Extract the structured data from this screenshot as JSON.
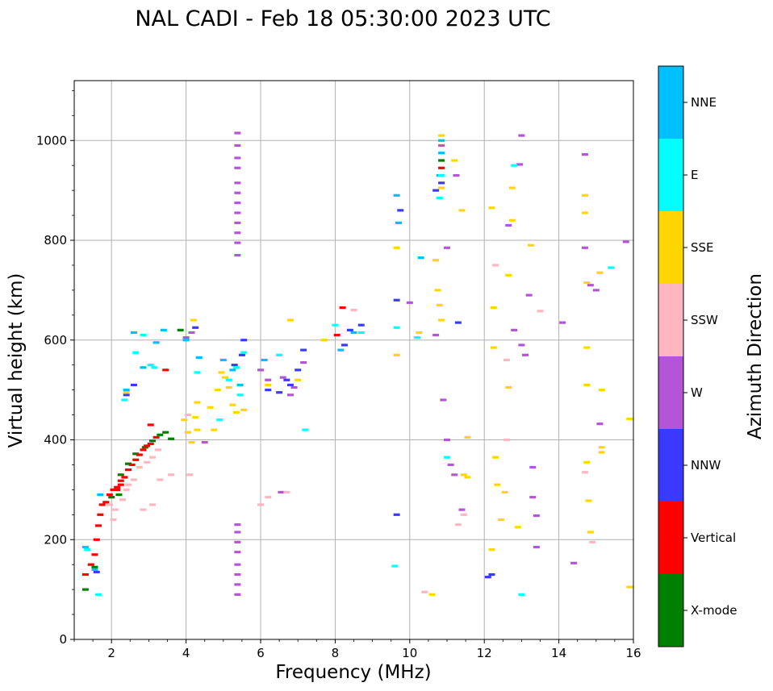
{
  "chart_data": {
    "type": "scatter",
    "title": "NAL CADI - Feb 18 05:30:00 2023 UTC",
    "xlabel": "Frequency (MHz)",
    "ylabel": "Virtual height (km)",
    "xlim": [
      1,
      16
    ],
    "ylim": [
      0,
      1120
    ],
    "xticks": [
      2,
      4,
      6,
      8,
      10,
      12,
      14,
      16
    ],
    "yticks": [
      0,
      200,
      400,
      600,
      800,
      1000
    ],
    "grid": true,
    "colorbar": {
      "label": "Azimuth Direction",
      "categories": [
        {
          "name": "X-mode",
          "color": "#008000"
        },
        {
          "name": "Vertical",
          "color": "#ff0000"
        },
        {
          "name": "NNW",
          "color": "#3a3aff"
        },
        {
          "name": "W",
          "color": "#b355d6"
        },
        {
          "name": "SSW",
          "color": "#ffb6c1"
        },
        {
          "name": "SSE",
          "color": "#ffd700"
        },
        {
          "name": "E",
          "color": "#00ffff"
        },
        {
          "name": "NNE",
          "color": "#00bfff"
        }
      ]
    },
    "series": [
      {
        "name": "X-mode",
        "points": [
          [
            1.3,
            100
          ],
          [
            1.55,
            145
          ],
          [
            2.0,
            285
          ],
          [
            2.25,
            330
          ],
          [
            2.45,
            352
          ],
          [
            2.65,
            372
          ],
          [
            2.9,
            385
          ],
          [
            3.1,
            398
          ],
          [
            3.3,
            410
          ],
          [
            3.45,
            415
          ],
          [
            3.6,
            402
          ],
          [
            3.85,
            620
          ],
          [
            2.2,
            290
          ]
        ]
      },
      {
        "name": "Vertical",
        "points": [
          [
            1.3,
            130
          ],
          [
            1.45,
            150
          ],
          [
            1.55,
            170
          ],
          [
            1.6,
            200
          ],
          [
            1.65,
            228
          ],
          [
            1.7,
            250
          ],
          [
            1.75,
            270
          ],
          [
            1.85,
            275
          ],
          [
            1.95,
            290
          ],
          [
            2.05,
            300
          ],
          [
            2.15,
            305
          ],
          [
            2.25,
            318
          ],
          [
            2.35,
            325
          ],
          [
            2.45,
            340
          ],
          [
            2.55,
            350
          ],
          [
            2.65,
            360
          ],
          [
            2.75,
            370
          ],
          [
            2.85,
            380
          ],
          [
            2.95,
            388
          ],
          [
            3.05,
            392
          ],
          [
            3.2,
            405
          ],
          [
            3.45,
            540
          ],
          [
            3.05,
            430
          ],
          [
            2.25,
            310
          ],
          [
            2.15,
            300
          ],
          [
            8.05,
            610
          ],
          [
            8.2,
            665
          ]
        ]
      },
      {
        "name": "NNW",
        "points": [
          [
            1.6,
            135
          ],
          [
            2.4,
            490
          ],
          [
            2.6,
            510
          ],
          [
            4.25,
            625
          ],
          [
            5.3,
            550
          ],
          [
            5.5,
            570
          ],
          [
            5.55,
            600
          ],
          [
            6.2,
            500
          ],
          [
            6.5,
            495
          ],
          [
            6.7,
            520
          ],
          [
            6.8,
            510
          ],
          [
            7.0,
            540
          ],
          [
            7.15,
            580
          ],
          [
            8.25,
            590
          ],
          [
            8.4,
            620
          ],
          [
            8.7,
            630
          ],
          [
            9.65,
            680
          ],
          [
            9.65,
            250
          ],
          [
            9.75,
            860
          ],
          [
            10.7,
            900
          ],
          [
            11.3,
            635
          ],
          [
            12.1,
            125
          ],
          [
            12.2,
            130
          ]
        ]
      },
      {
        "name": "W",
        "points": [
          [
            5.38,
            1015
          ],
          [
            5.38,
            990
          ],
          [
            5.38,
            965
          ],
          [
            5.38,
            945
          ],
          [
            5.38,
            915
          ],
          [
            5.38,
            895
          ],
          [
            5.38,
            875
          ],
          [
            5.38,
            855
          ],
          [
            5.38,
            835
          ],
          [
            5.38,
            815
          ],
          [
            5.38,
            795
          ],
          [
            5.38,
            770
          ],
          [
            5.38,
            230
          ],
          [
            5.38,
            215
          ],
          [
            5.38,
            195
          ],
          [
            5.38,
            175
          ],
          [
            5.38,
            150
          ],
          [
            5.38,
            130
          ],
          [
            5.38,
            110
          ],
          [
            5.38,
            90
          ],
          [
            6.0,
            540
          ],
          [
            6.2,
            520
          ],
          [
            6.6,
            525
          ],
          [
            6.9,
            505
          ],
          [
            7.15,
            555
          ],
          [
            6.8,
            490
          ],
          [
            4.5,
            395
          ],
          [
            6.55,
            295
          ],
          [
            10.0,
            675
          ],
          [
            10.7,
            610
          ],
          [
            10.9,
            480
          ],
          [
            11.0,
            400
          ],
          [
            11.1,
            350
          ],
          [
            11.2,
            330
          ],
          [
            11.4,
            260
          ],
          [
            12.8,
            620
          ],
          [
            13.0,
            590
          ],
          [
            13.1,
            570
          ],
          [
            13.3,
            345
          ],
          [
            13.3,
            285
          ],
          [
            13.4,
            248
          ],
          [
            13.4,
            185
          ],
          [
            14.1,
            635
          ],
          [
            14.4,
            153
          ],
          [
            14.7,
            785
          ],
          [
            14.7,
            972
          ],
          [
            14.85,
            710
          ],
          [
            15.1,
            432
          ],
          [
            15.0,
            700
          ],
          [
            15.8,
            797
          ],
          [
            13.0,
            1010
          ],
          [
            12.65,
            830
          ],
          [
            12.95,
            952
          ],
          [
            13.2,
            690
          ],
          [
            11.25,
            930
          ],
          [
            11.0,
            785
          ],
          [
            4.0,
            605
          ],
          [
            4.15,
            615
          ]
        ]
      },
      {
        "name": "SSW",
        "points": [
          [
            1.95,
            270
          ],
          [
            2.1,
            260
          ],
          [
            2.3,
            280
          ],
          [
            2.4,
            300
          ],
          [
            2.6,
            320
          ],
          [
            2.75,
            345
          ],
          [
            2.95,
            355
          ],
          [
            3.1,
            365
          ],
          [
            3.25,
            380
          ],
          [
            2.85,
            260
          ],
          [
            3.1,
            270
          ],
          [
            3.3,
            320
          ],
          [
            3.6,
            330
          ],
          [
            2.45,
            310
          ],
          [
            2.05,
            240
          ],
          [
            4.1,
            330
          ],
          [
            4.05,
            450
          ],
          [
            6.0,
            270
          ],
          [
            6.2,
            285
          ],
          [
            6.7,
            295
          ],
          [
            8.5,
            660
          ],
          [
            11.3,
            230
          ],
          [
            11.45,
            250
          ],
          [
            12.3,
            750
          ],
          [
            12.6,
            560
          ],
          [
            12.6,
            400
          ],
          [
            14.7,
            335
          ],
          [
            14.9,
            195
          ],
          [
            13.5,
            658
          ],
          [
            10.4,
            95
          ]
        ]
      },
      {
        "name": "SSE",
        "points": [
          [
            2.4,
            495
          ],
          [
            3.95,
            440
          ],
          [
            4.05,
            415
          ],
          [
            4.15,
            395
          ],
          [
            4.25,
            445
          ],
          [
            4.3,
            475
          ],
          [
            4.65,
            465
          ],
          [
            4.75,
            420
          ],
          [
            4.85,
            500
          ],
          [
            4.95,
            535
          ],
          [
            5.05,
            525
          ],
          [
            5.15,
            505
          ],
          [
            5.25,
            470
          ],
          [
            5.35,
            455
          ],
          [
            5.55,
            460
          ],
          [
            6.2,
            510
          ],
          [
            6.8,
            640
          ],
          [
            7.0,
            520
          ],
          [
            7.7,
            600
          ],
          [
            9.65,
            570
          ],
          [
            9.65,
            785
          ],
          [
            10.25,
            615
          ],
          [
            10.7,
            760
          ],
          [
            10.75,
            700
          ],
          [
            10.8,
            670
          ],
          [
            10.85,
            640
          ],
          [
            11.2,
            960
          ],
          [
            11.4,
            860
          ],
          [
            11.45,
            330
          ],
          [
            11.55,
            325
          ],
          [
            12.2,
            865
          ],
          [
            12.25,
            665
          ],
          [
            12.25,
            585
          ],
          [
            12.3,
            365
          ],
          [
            12.35,
            310
          ],
          [
            12.45,
            240
          ],
          [
            12.55,
            295
          ],
          [
            12.75,
            905
          ],
          [
            12.75,
            840
          ],
          [
            12.65,
            730
          ],
          [
            12.65,
            505
          ],
          [
            12.9,
            225
          ],
          [
            13.25,
            790
          ],
          [
            14.7,
            890
          ],
          [
            14.7,
            855
          ],
          [
            14.75,
            715
          ],
          [
            14.75,
            585
          ],
          [
            14.75,
            510
          ],
          [
            14.75,
            355
          ],
          [
            14.8,
            278
          ],
          [
            14.85,
            215
          ],
          [
            15.1,
            735
          ],
          [
            15.15,
            500
          ],
          [
            15.15,
            385
          ],
          [
            15.15,
            375
          ],
          [
            15.9,
            442
          ],
          [
            15.9,
            105
          ],
          [
            10.6,
            90
          ],
          [
            11.55,
            405
          ],
          [
            12.2,
            180
          ],
          [
            4.2,
            640
          ],
          [
            4.3,
            420
          ]
        ]
      },
      {
        "name": "E",
        "points": [
          [
            1.35,
            180
          ],
          [
            1.65,
            90
          ],
          [
            2.35,
            480
          ],
          [
            2.65,
            575
          ],
          [
            2.85,
            610
          ],
          [
            3.05,
            550
          ],
          [
            3.15,
            545
          ],
          [
            4.3,
            535
          ],
          [
            4.9,
            440
          ],
          [
            5.15,
            520
          ],
          [
            5.35,
            545
          ],
          [
            5.45,
            490
          ],
          [
            5.55,
            575
          ],
          [
            6.5,
            570
          ],
          [
            7.2,
            420
          ],
          [
            8.0,
            630
          ],
          [
            8.7,
            615
          ],
          [
            9.65,
            625
          ],
          [
            10.2,
            605
          ],
          [
            10.8,
            885
          ],
          [
            11.0,
            365
          ],
          [
            12.8,
            950
          ],
          [
            13.0,
            90
          ],
          [
            15.4,
            745
          ],
          [
            9.6,
            147
          ]
        ]
      },
      {
        "name": "NNE",
        "points": [
          [
            1.3,
            185
          ],
          [
            1.55,
            140
          ],
          [
            1.7,
            290
          ],
          [
            2.4,
            500
          ],
          [
            2.6,
            615
          ],
          [
            2.85,
            545
          ],
          [
            3.2,
            595
          ],
          [
            3.4,
            620
          ],
          [
            4.0,
            600
          ],
          [
            4.35,
            565
          ],
          [
            5.0,
            560
          ],
          [
            5.25,
            540
          ],
          [
            5.45,
            510
          ],
          [
            6.1,
            560
          ],
          [
            8.15,
            580
          ],
          [
            9.65,
            890
          ],
          [
            9.7,
            835
          ],
          [
            10.3,
            765
          ],
          [
            10.8,
            930
          ],
          [
            10.85,
            1000
          ],
          [
            8.5,
            615
          ]
        ]
      },
      {
        "name": "NNE-column",
        "points": [
          [
            10.85,
            1010
          ],
          [
            10.85,
            990
          ],
          [
            10.85,
            975
          ],
          [
            10.85,
            960
          ],
          [
            10.85,
            945
          ],
          [
            10.85,
            930
          ],
          [
            10.85,
            915
          ],
          [
            10.85,
            905
          ]
        ]
      }
    ]
  }
}
